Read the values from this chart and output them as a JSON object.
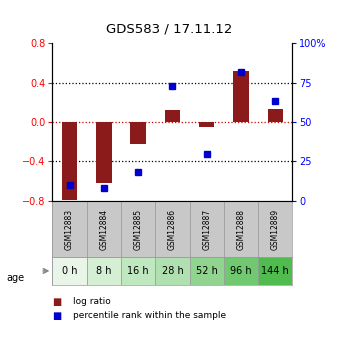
{
  "title": "GDS583 / 17.11.12",
  "samples": [
    "GSM12883",
    "GSM12884",
    "GSM12885",
    "GSM12886",
    "GSM12887",
    "GSM12888",
    "GSM12889"
  ],
  "ages": [
    "0 h",
    "8 h",
    "16 h",
    "28 h",
    "52 h",
    "96 h",
    "144 h"
  ],
  "log_ratio": [
    -0.79,
    -0.62,
    -0.22,
    0.12,
    -0.05,
    0.52,
    0.13
  ],
  "percentile_rank": [
    10,
    8,
    18,
    73,
    30,
    82,
    63
  ],
  "ylim_left": [
    -0.8,
    0.8
  ],
  "ylim_right": [
    0,
    100
  ],
  "yticks_left": [
    -0.8,
    -0.4,
    0,
    0.4,
    0.8
  ],
  "yticks_right": [
    0,
    25,
    50,
    75,
    100
  ],
  "bar_color": "#8B1A1A",
  "scatter_color": "#0000CD",
  "dotline_color": "#CC0000",
  "age_colors": [
    "#e8f5e8",
    "#d4efd4",
    "#c0e8c0",
    "#b0e0b0",
    "#90d490",
    "#70c870",
    "#50bc50"
  ],
  "sample_color": "#c8c8c8",
  "bg_color": "#ffffff"
}
